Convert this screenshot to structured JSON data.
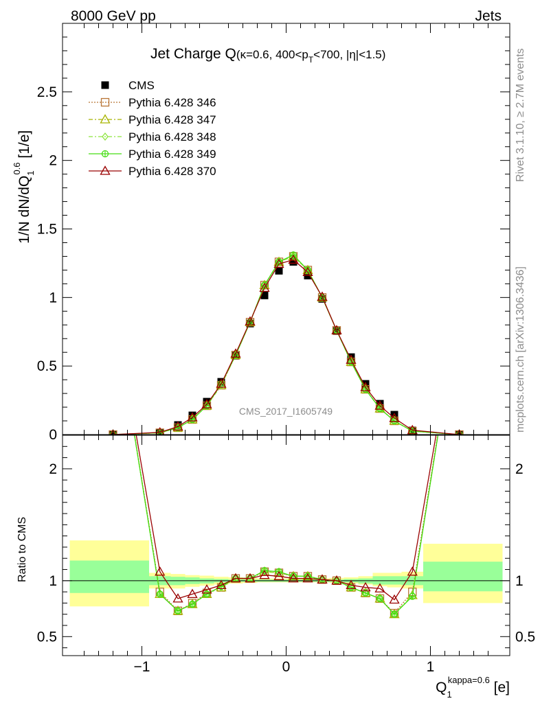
{
  "header": {
    "left": "8000 GeV pp",
    "right": "Jets"
  },
  "side_labels": {
    "rivet": "Rivet 3.1.10, ≥ 2.7M events",
    "mcplots": "mcplots.cern.ch [arXiv:1306.3436]"
  },
  "watermark": "CMS_2017_I1605749",
  "chart_data": [
    {
      "type": "line",
      "panel": "main",
      "title": "Jet Charge Q (κ=0.6, 400<pT<700, |η|<1.5)",
      "title_parts": {
        "main": "Jet Charge Q",
        "open": "(κ=0.6, 400<p",
        "sub": "T",
        "close": "<700, |η|<1.5)"
      },
      "ylabel": "1/N dN/dQ1^0.6 [1/e]",
      "ylabel_parts": {
        "a": "1/N dN/dQ",
        "sub": "1",
        "sup": "0.6",
        "b": " [1/e]"
      },
      "xlim": [
        -1.55,
        1.55
      ],
      "ylim": [
        0,
        3.0
      ],
      "yticks": [
        0,
        0.5,
        1,
        1.5,
        2,
        2.5
      ],
      "ytick_labels": [
        "0",
        "0.5",
        "1",
        "1.5",
        "2",
        "2.5"
      ],
      "legend_position": "top-left",
      "x": [
        -1.2,
        -0.875,
        -0.75,
        -0.65,
        -0.55,
        -0.45,
        -0.35,
        -0.25,
        -0.15,
        -0.05,
        0.05,
        0.15,
        0.25,
        0.35,
        0.45,
        0.55,
        0.65,
        0.75,
        0.875,
        1.2
      ],
      "series": [
        {
          "name": "CMS",
          "color": "#000000",
          "marker": "square-filled",
          "line": "none",
          "values": [
            0.0,
            0.015,
            0.07,
            0.14,
            0.24,
            0.385,
            0.575,
            0.81,
            1.015,
            1.195,
            1.26,
            1.16,
            0.99,
            0.755,
            0.565,
            0.37,
            0.225,
            0.145,
            0.03,
            0.0
          ]
        },
        {
          "name": "Pythia 6.428 346",
          "color": "#b87333",
          "marker": "square-open",
          "line": "dotted",
          "values": [
            0.0,
            0.013,
            0.05,
            0.11,
            0.21,
            0.36,
            0.58,
            0.82,
            1.09,
            1.26,
            1.3,
            1.2,
            1.0,
            0.76,
            0.53,
            0.33,
            0.19,
            0.1,
            0.025,
            0.0
          ]
        },
        {
          "name": "Pythia 6.428 347",
          "color": "#a8b400",
          "marker": "triangle-open",
          "line": "dashdot",
          "values": [
            0.0,
            0.013,
            0.05,
            0.11,
            0.21,
            0.36,
            0.58,
            0.82,
            1.09,
            1.26,
            1.3,
            1.2,
            1.0,
            0.76,
            0.53,
            0.33,
            0.19,
            0.1,
            0.025,
            0.0
          ]
        },
        {
          "name": "Pythia 6.428 348",
          "color": "#8ee53f",
          "marker": "diamond-open",
          "line": "dashdot",
          "values": [
            0.0,
            0.013,
            0.05,
            0.11,
            0.21,
            0.36,
            0.58,
            0.82,
            1.09,
            1.26,
            1.3,
            1.2,
            1.0,
            0.76,
            0.53,
            0.33,
            0.19,
            0.1,
            0.025,
            0.0
          ]
        },
        {
          "name": "Pythia 6.428 349",
          "color": "#44dd11",
          "marker": "circle-cross",
          "line": "solid",
          "values": [
            0.0,
            0.013,
            0.05,
            0.11,
            0.21,
            0.37,
            0.58,
            0.82,
            1.09,
            1.26,
            1.31,
            1.2,
            1.0,
            0.76,
            0.53,
            0.33,
            0.19,
            0.1,
            0.025,
            0.0
          ]
        },
        {
          "name": "Pythia 6.428 370",
          "color": "#990000",
          "marker": "triangle-open",
          "line": "solid",
          "values": [
            0.0,
            0.016,
            0.058,
            0.125,
            0.22,
            0.37,
            0.59,
            0.825,
            1.07,
            1.245,
            1.275,
            1.185,
            1.005,
            0.76,
            0.545,
            0.345,
            0.21,
            0.12,
            0.032,
            0.0
          ]
        }
      ]
    },
    {
      "type": "line",
      "panel": "ratio",
      "ylabel": "Ratio to CMS",
      "xlabel": "Q1^kappa=0.6 [e]",
      "xlabel_parts": {
        "a": "Q",
        "sub": "1",
        "sup": "kappa=0.6",
        "b": " [e]"
      },
      "xlim": [
        -1.55,
        1.55
      ],
      "ylim": [
        0.33,
        2.3
      ],
      "xticks": [
        -1,
        0,
        1
      ],
      "xtick_labels": [
        "−1",
        "0",
        "1"
      ],
      "yticks": [
        0.5,
        1,
        2
      ],
      "ytick_labels": [
        "0.5",
        "1",
        "2"
      ],
      "bands": {
        "edges": [
          -1.5,
          -0.95,
          -0.8,
          -0.7,
          -0.6,
          -0.5,
          -0.4,
          -0.3,
          -0.2,
          -0.1,
          0.0,
          0.1,
          0.2,
          0.3,
          0.4,
          0.5,
          0.6,
          0.7,
          0.8,
          0.95,
          1.5
        ],
        "outer_lo": [
          0.77,
          0.93,
          0.93,
          0.945,
          0.955,
          0.965,
          0.975,
          0.98,
          0.985,
          0.985,
          0.985,
          0.985,
          0.985,
          0.98,
          0.975,
          0.965,
          0.95,
          0.94,
          0.93,
          0.8
        ],
        "outer_hi": [
          1.36,
          1.07,
          1.06,
          1.05,
          1.045,
          1.035,
          1.03,
          1.025,
          1.02,
          1.02,
          1.02,
          1.02,
          1.02,
          1.025,
          1.03,
          1.04,
          1.07,
          1.07,
          1.08,
          1.33
        ],
        "inner_lo": [
          0.89,
          0.96,
          0.96,
          0.97,
          0.975,
          0.985,
          0.99,
          0.99,
          0.99,
          0.99,
          0.99,
          0.99,
          0.99,
          0.99,
          0.985,
          0.975,
          0.965,
          0.965,
          0.96,
          0.905
        ],
        "inner_hi": [
          1.18,
          1.04,
          1.035,
          1.03,
          1.02,
          1.015,
          1.01,
          1.01,
          1.01,
          1.01,
          1.01,
          1.01,
          1.01,
          1.01,
          1.015,
          1.02,
          1.04,
          1.04,
          1.04,
          1.17
        ]
      },
      "x": [
        -1.2,
        -0.875,
        -0.75,
        -0.65,
        -0.55,
        -0.45,
        -0.35,
        -0.25,
        -0.15,
        -0.05,
        0.05,
        0.15,
        0.25,
        0.35,
        0.45,
        0.55,
        0.65,
        0.75,
        0.875,
        1.2
      ],
      "series": [
        {
          "name": "Pythia 6.428 346",
          "color": "#b87333",
          "marker": "square-open",
          "line": "dotted",
          "values": [
            3.5,
            0.9,
            0.73,
            0.8,
            0.89,
            0.94,
            1.02,
            1.02,
            1.08,
            1.07,
            1.04,
            1.04,
            1.01,
            1.0,
            0.94,
            0.89,
            0.84,
            0.71,
            0.9,
            3.5
          ]
        },
        {
          "name": "Pythia 6.428 347",
          "color": "#a8b400",
          "marker": "triangle-open",
          "line": "dashdot",
          "values": [
            3.5,
            0.88,
            0.73,
            0.79,
            0.88,
            0.94,
            1.02,
            1.02,
            1.08,
            1.07,
            1.04,
            1.04,
            1.01,
            1.0,
            0.94,
            0.89,
            0.84,
            0.7,
            0.87,
            3.5
          ]
        },
        {
          "name": "Pythia 6.428 348",
          "color": "#8ee53f",
          "marker": "diamond-open",
          "line": "dashdot",
          "values": [
            3.5,
            0.88,
            0.73,
            0.79,
            0.88,
            0.94,
            1.02,
            1.02,
            1.08,
            1.07,
            1.04,
            1.04,
            1.01,
            1.0,
            0.94,
            0.89,
            0.84,
            0.7,
            0.87,
            3.5
          ]
        },
        {
          "name": "Pythia 6.428 349",
          "color": "#44dd11",
          "marker": "circle-cross",
          "line": "solid",
          "values": [
            3.5,
            0.88,
            0.73,
            0.79,
            0.88,
            0.95,
            1.02,
            1.02,
            1.09,
            1.08,
            1.04,
            1.04,
            1.01,
            1.0,
            0.94,
            0.89,
            0.84,
            0.7,
            0.86,
            3.5
          ]
        },
        {
          "name": "Pythia 6.428 370",
          "color": "#990000",
          "marker": "triangle-open",
          "line": "solid",
          "values": [
            3.5,
            1.08,
            0.84,
            0.88,
            0.92,
            0.96,
            1.02,
            1.02,
            1.05,
            1.04,
            1.02,
            1.02,
            1.01,
            1.0,
            0.96,
            0.94,
            0.93,
            0.83,
            1.08,
            3.5
          ]
        }
      ]
    }
  ]
}
